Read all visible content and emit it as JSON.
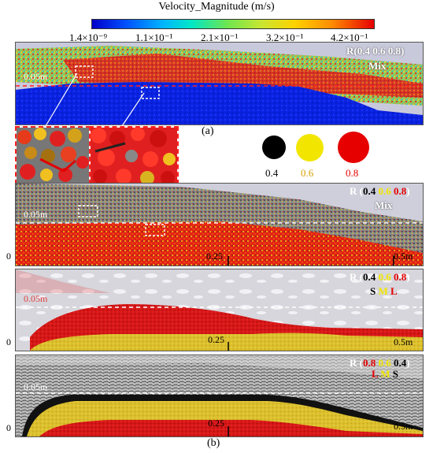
{
  "colorbar": {
    "title": "Velocity_Magnitude (m/s)",
    "ticks": [
      "1.4×10⁻⁹",
      "1.1×10⁻¹",
      "2.1×10⁻¹",
      "3.2×10⁻¹",
      "4.2×10⁻¹"
    ]
  },
  "panel_a": {
    "label_r": "R(0.4 0.6 0.8)",
    "label_mix": "Mix",
    "depth_label": "0.05m",
    "caption": "(a)"
  },
  "legend": {
    "items": [
      {
        "label": "0.4",
        "color": "#000000"
      },
      {
        "label": "0.6",
        "color": "#f2e600"
      },
      {
        "label": "0.8",
        "color": "#e60000"
      }
    ]
  },
  "panel_b1": {
    "r": "R (",
    "v1": "0.4",
    "v2": "0.6",
    "v3": "0.8",
    "close": ")",
    "mix": "Mix",
    "depth_label": "0.05m",
    "zero": "0",
    "mid": "0.25",
    "end": "0.5m"
  },
  "panel_b2": {
    "r": "R (",
    "v1": "0.4",
    "v2": "0.6",
    "v3": "0.8",
    "close": ")",
    "s1": "S",
    "s2": "M",
    "s3": "L",
    "depth_label": "0.05m",
    "zero": "0",
    "mid": "0.25",
    "end": "0.5m"
  },
  "panel_b3": {
    "r": "R (",
    "v1": "0.8",
    "v2": "0.6",
    "v3": "0.4",
    "close": ")",
    "s1": "L",
    "s2": "M",
    "s3": "S",
    "depth_label": "0.05m",
    "zero": "0",
    "mid": "0.25",
    "end": "0.5m"
  },
  "caption_b": "(b)"
}
